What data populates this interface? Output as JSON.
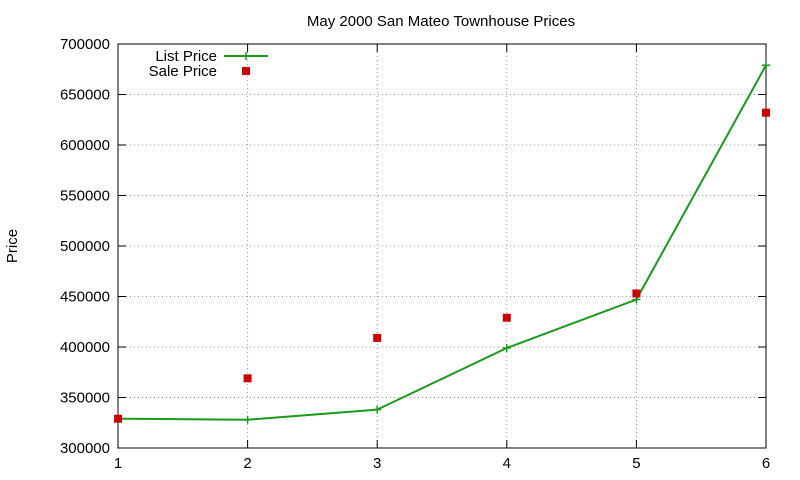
{
  "chart_data": {
    "type": "line",
    "title": "May 2000 San Mateo Townhouse Prices",
    "xlabel": "",
    "ylabel": "Price",
    "xlim": [
      1,
      6
    ],
    "ylim": [
      300000,
      700000
    ],
    "x_ticks": [
      1,
      2,
      3,
      4,
      5,
      6
    ],
    "y_ticks": [
      300000,
      350000,
      400000,
      450000,
      500000,
      550000,
      600000,
      650000,
      700000
    ],
    "grid": true,
    "legend_position": "top-left",
    "series": [
      {
        "name": "List Price",
        "style": "line+cross",
        "color": "#1a9a1a",
        "x": [
          1,
          2,
          3,
          4,
          5,
          6
        ],
        "y": [
          329000,
          328000,
          338000,
          399000,
          447000,
          679000
        ]
      },
      {
        "name": "Sale Price",
        "style": "square-marker",
        "color": "#cc0000",
        "x": [
          1,
          2,
          3,
          4,
          5,
          6
        ],
        "y": [
          329000,
          369000,
          409000,
          429000,
          453000,
          632000
        ]
      }
    ]
  }
}
